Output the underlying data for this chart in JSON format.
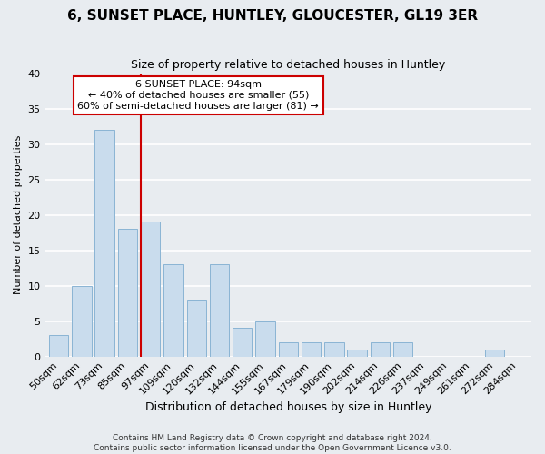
{
  "title": "6, SUNSET PLACE, HUNTLEY, GLOUCESTER, GL19 3ER",
  "subtitle": "Size of property relative to detached houses in Huntley",
  "xlabel": "Distribution of detached houses by size in Huntley",
  "ylabel": "Number of detached properties",
  "bar_labels": [
    "50sqm",
    "62sqm",
    "73sqm",
    "85sqm",
    "97sqm",
    "109sqm",
    "120sqm",
    "132sqm",
    "144sqm",
    "155sqm",
    "167sqm",
    "179sqm",
    "190sqm",
    "202sqm",
    "214sqm",
    "226sqm",
    "237sqm",
    "249sqm",
    "261sqm",
    "272sqm",
    "284sqm"
  ],
  "bar_values": [
    3,
    10,
    32,
    18,
    19,
    13,
    8,
    13,
    4,
    5,
    2,
    2,
    2,
    1,
    2,
    2,
    0,
    0,
    0,
    1,
    0
  ],
  "bar_color": "#c9dced",
  "bar_edge_color": "#8ab4d4",
  "red_line_index": 4,
  "annotation_line1": "6 SUNSET PLACE: 94sqm",
  "annotation_line2": "← 40% of detached houses are smaller (55)",
  "annotation_line3": "60% of semi-detached houses are larger (81) →",
  "annotation_box_color": "white",
  "annotation_box_edge": "#cc0000",
  "marker_color": "#cc0000",
  "ylim": [
    0,
    40
  ],
  "yticks": [
    0,
    5,
    10,
    15,
    20,
    25,
    30,
    35,
    40
  ],
  "footer1": "Contains HM Land Registry data © Crown copyright and database right 2024.",
  "footer2": "Contains public sector information licensed under the Open Government Licence v3.0.",
  "background_color": "#e8ecf0",
  "plot_background": "#e8ecf0",
  "grid_color": "white",
  "title_fontsize": 11,
  "subtitle_fontsize": 9,
  "xlabel_fontsize": 9,
  "ylabel_fontsize": 8,
  "tick_fontsize": 8,
  "annotation_fontsize": 8,
  "footer_fontsize": 6.5
}
